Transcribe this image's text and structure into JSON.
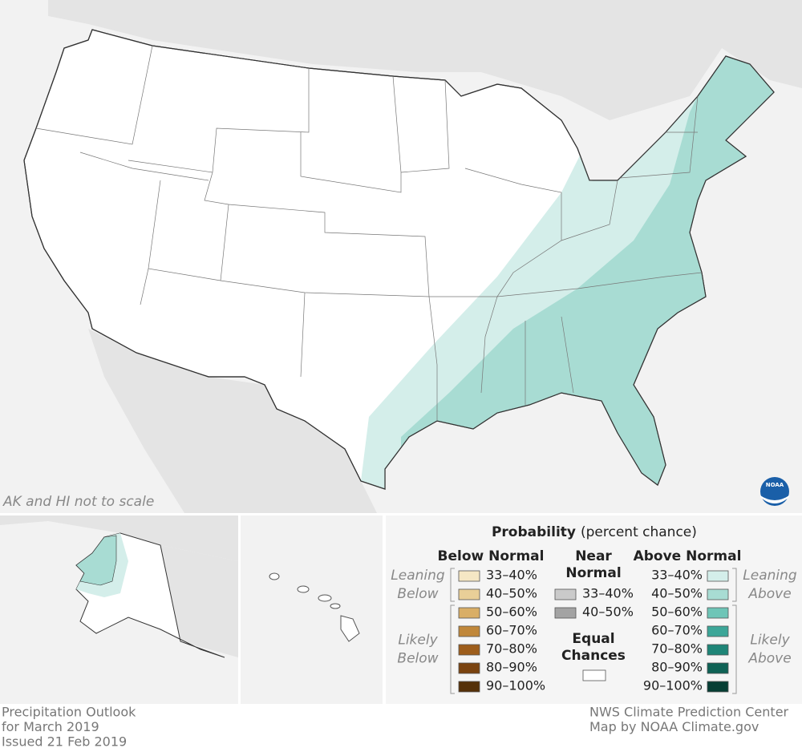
{
  "map": {
    "note": "AK and HI not to scale",
    "logo": "NOAA"
  },
  "legend": {
    "title": "Probability",
    "subtitle": "(percent chance)",
    "groups": [
      {
        "name": [
          "Below Normal"
        ],
        "leaning": [
          "Leaning",
          "Below"
        ],
        "likely": [
          "Likely",
          "Below"
        ],
        "items": [
          {
            "label": "33–40%",
            "color": "#f5e7c4"
          },
          {
            "label": "40–50%",
            "color": "#e9cf98"
          },
          {
            "label": "50–60%",
            "color": "#d9ae66"
          },
          {
            "label": "60–70%",
            "color": "#c0873a"
          },
          {
            "label": "70–80%",
            "color": "#9d5d1b"
          },
          {
            "label": "80–90%",
            "color": "#7a430f"
          },
          {
            "label": "90–100%",
            "color": "#553008"
          }
        ]
      },
      {
        "name": [
          "Near",
          "Normal"
        ],
        "items": [
          {
            "label": "33–40%",
            "color": "#cacaca"
          },
          {
            "label": "40–50%",
            "color": "#a3a3a3"
          }
        ]
      },
      {
        "name": [
          "Above Normal"
        ],
        "leaning": [
          "Leaning",
          "Above"
        ],
        "likely": [
          "Likely",
          "Above"
        ],
        "items": [
          {
            "label": "33–40%",
            "color": "#d4eeea"
          },
          {
            "label": "40–50%",
            "color": "#a8dcd3"
          },
          {
            "label": "50–60%",
            "color": "#6ec5b7"
          },
          {
            "label": "60–70%",
            "color": "#3ca698"
          },
          {
            "label": "70–80%",
            "color": "#1e8577"
          },
          {
            "label": "80–90%",
            "color": "#0f6255"
          },
          {
            "label": "90–100%",
            "color": "#063e34"
          }
        ]
      }
    ],
    "equal_chances": {
      "lines": [
        "Equal",
        "Chances"
      ],
      "color": "#ffffff"
    }
  },
  "footer": {
    "left": [
      "Precipitation Outlook",
      "for March 2019",
      "Issued 21 Feb 2019"
    ],
    "right": [
      "NWS Climate Prediction Center",
      "Map by NOAA Climate.gov"
    ]
  }
}
